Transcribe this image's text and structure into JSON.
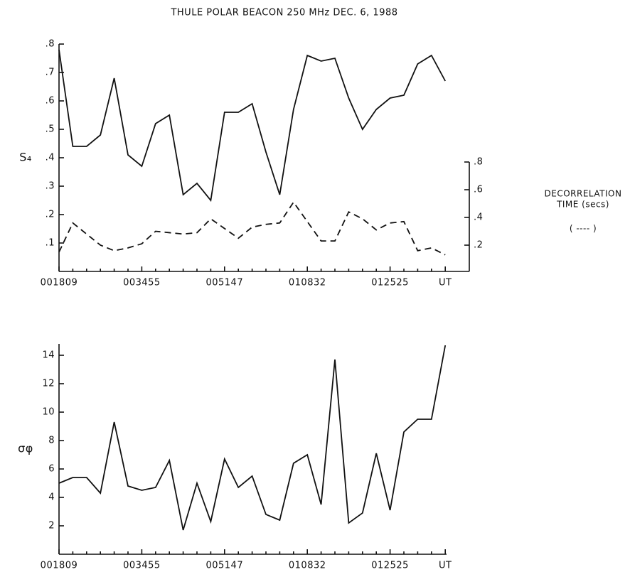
{
  "chart_data": [
    {
      "type": "line",
      "title": "THULE    POLAR BEACON    250 MHz    DEC. 6, 1988",
      "ylabel": "S₄",
      "y2label": [
        "DECORRELATION",
        "TIME (secs)"
      ],
      "y2legend": "( ---- )",
      "categories": [
        "001809",
        null,
        null,
        null,
        null,
        null,
        "003455",
        null,
        null,
        null,
        null,
        null,
        "005147",
        null,
        null,
        null,
        null,
        null,
        "010832",
        null,
        null,
        null,
        null,
        null,
        "012525",
        null,
        null,
        null,
        "UT"
      ],
      "ylim": [
        0,
        0.8
      ],
      "yticks": [
        {
          "value": 0.1,
          "label": ".1"
        },
        {
          "value": 0.2,
          "label": ".2"
        },
        {
          "value": 0.3,
          "label": ".3"
        },
        {
          "value": 0.4,
          "label": ".4"
        },
        {
          "value": 0.5,
          "label": ".5"
        },
        {
          "value": 0.6,
          "label": ".6"
        },
        {
          "value": 0.7,
          "label": ".7"
        },
        {
          "value": 0.8,
          "label": ".8"
        }
      ],
      "y2lim": [
        0,
        0.8
      ],
      "y2ticks": [
        {
          "value": 0.2,
          "label": ".2"
        },
        {
          "value": 0.4,
          "label": ".4"
        },
        {
          "value": 0.6,
          "label": ".6"
        },
        {
          "value": 0.8,
          "label": ".8"
        }
      ],
      "series": [
        {
          "color": "#111111",
          "dash": "solid",
          "values": [
            0.78,
            0.44,
            0.44,
            0.48,
            0.68,
            0.41,
            0.37,
            0.52,
            0.55,
            0.27,
            0.31,
            0.25,
            0.56,
            0.56,
            0.59,
            0.42,
            0.27,
            0.57,
            0.76,
            0.74,
            0.75,
            0.61,
            0.5,
            0.57,
            0.61,
            0.62,
            0.73,
            0.76,
            0.67
          ]
        },
        {
          "color": "#111111",
          "dash": "dashed",
          "axis": "y2",
          "values": [
            0.15,
            0.36,
            0.28,
            0.2,
            0.16,
            0.18,
            0.21,
            0.3,
            0.29,
            0.28,
            0.29,
            0.39,
            0.32,
            0.25,
            0.33,
            0.35,
            0.36,
            0.51,
            0.37,
            0.23,
            0.23,
            0.44,
            0.39,
            0.31,
            0.36,
            0.37,
            0.16,
            0.18,
            0.13
          ]
        }
      ]
    },
    {
      "type": "line",
      "ylabel": "σφ",
      "categories": [
        "001809",
        null,
        null,
        null,
        null,
        null,
        "003455",
        null,
        null,
        null,
        null,
        null,
        "005147",
        null,
        null,
        null,
        null,
        null,
        "010832",
        null,
        null,
        null,
        null,
        null,
        "012525",
        null,
        null,
        null,
        "UT"
      ],
      "ylim": [
        0,
        14.8
      ],
      "yticks": [
        2,
        4,
        6,
        8,
        10,
        12,
        14
      ],
      "series": [
        {
          "color": "#111111",
          "dash": "solid",
          "values": [
            5.0,
            5.4,
            5.4,
            4.3,
            9.3,
            4.8,
            4.5,
            4.7,
            6.6,
            1.7,
            5.0,
            2.3,
            6.7,
            4.7,
            5.5,
            2.8,
            2.4,
            6.4,
            7.0,
            3.5,
            13.7,
            2.2,
            2.9,
            7.1,
            3.1,
            8.6,
            9.5,
            9.5,
            14.7
          ]
        }
      ]
    }
  ]
}
